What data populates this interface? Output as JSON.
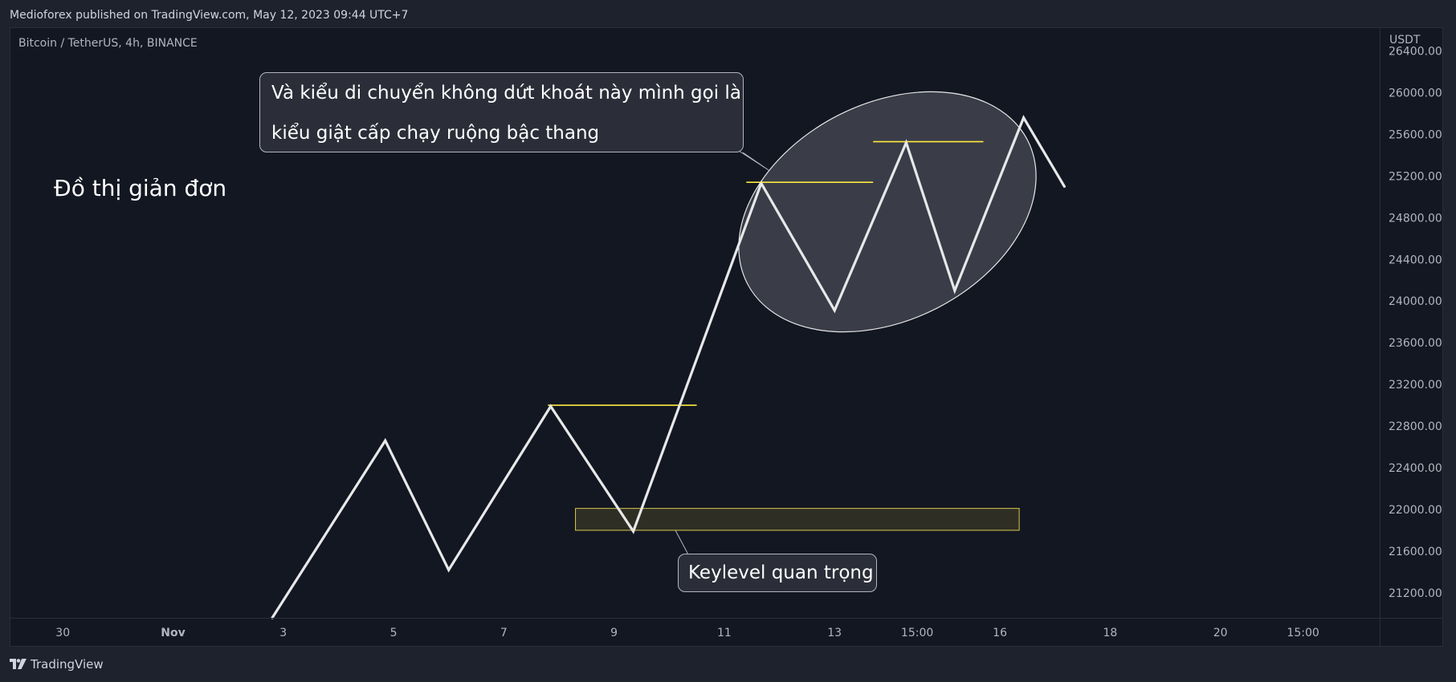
{
  "header": {
    "publish_text": "Medioforex published on TradingView.com, May 12, 2023 09:44 UTC+7"
  },
  "symbol_info": "Bitcoin / TetherUS, 4h, BINANCE",
  "price_axis": {
    "currency": "USDT"
  },
  "footer": {
    "brand": "TradingView",
    "logo_icon": "tradingview-logo-icon"
  },
  "annotations": {
    "heading": "Đồ thị giản đơn",
    "callout_top_line1": "Và kiểu di chuyển không dứt khoát này mình gọi là",
    "callout_top_line2": "kiểu giật cấp chạy ruộng bậc thang",
    "callout_bottom": "Keylevel quan trọng"
  },
  "colors": {
    "background": "#131722",
    "line": "#e8e8e8",
    "level_line": "#ffeb3b",
    "zone_fill": "#2f2e25",
    "zone_border": "#d4c94a",
    "ellipse_fill": "#3a3d48",
    "axis_text": "#b2b5be"
  },
  "chart_data": {
    "type": "line",
    "y_ticks": [
      26400,
      26000,
      25600,
      25200,
      24800,
      24400,
      24000,
      23600,
      23200,
      22800,
      22400,
      22000,
      21600,
      21200
    ],
    "y_tick_labels": [
      "26400.00",
      "26000.00",
      "25600.00",
      "25200.00",
      "24800.00",
      "24400.00",
      "24000.00",
      "23600.00",
      "23200.00",
      "22800.00",
      "22400.00",
      "22000.00",
      "21600.00",
      "21200.00"
    ],
    "ylim": [
      20960,
      26620
    ],
    "x_ticks": [
      30,
      32,
      34,
      36,
      38,
      40,
      42,
      44,
      45.5,
      47,
      49,
      51,
      52.5
    ],
    "x_tick_labels": [
      "30",
      "Nov",
      "3",
      "5",
      "7",
      "9",
      "11",
      "13",
      "15:00",
      "16",
      "18",
      "20",
      "15:00"
    ],
    "xlim": [
      29.05,
      53.89
    ],
    "series": [
      {
        "x": [
          33.8,
          35.85,
          37.0,
          38.85,
          40.35,
          42.67,
          44.0,
          45.3,
          46.18,
          47.43,
          48.17
        ],
        "y": [
          20960,
          22660,
          21420,
          22990,
          21790,
          25130,
          23910,
          25520,
          24100,
          25760,
          25100
        ]
      }
    ],
    "level_lines": [
      {
        "x_start": 38.8,
        "x_end": 41.5,
        "y": 23000
      },
      {
        "x_start": 42.4,
        "x_end": 44.7,
        "y": 25140
      },
      {
        "x_start": 44.7,
        "x_end": 46.7,
        "y": 25530
      }
    ],
    "zones": [
      {
        "x_start": 39.3,
        "x_end": 47.35,
        "y_low": 21800,
        "y_high": 22010
      }
    ]
  }
}
